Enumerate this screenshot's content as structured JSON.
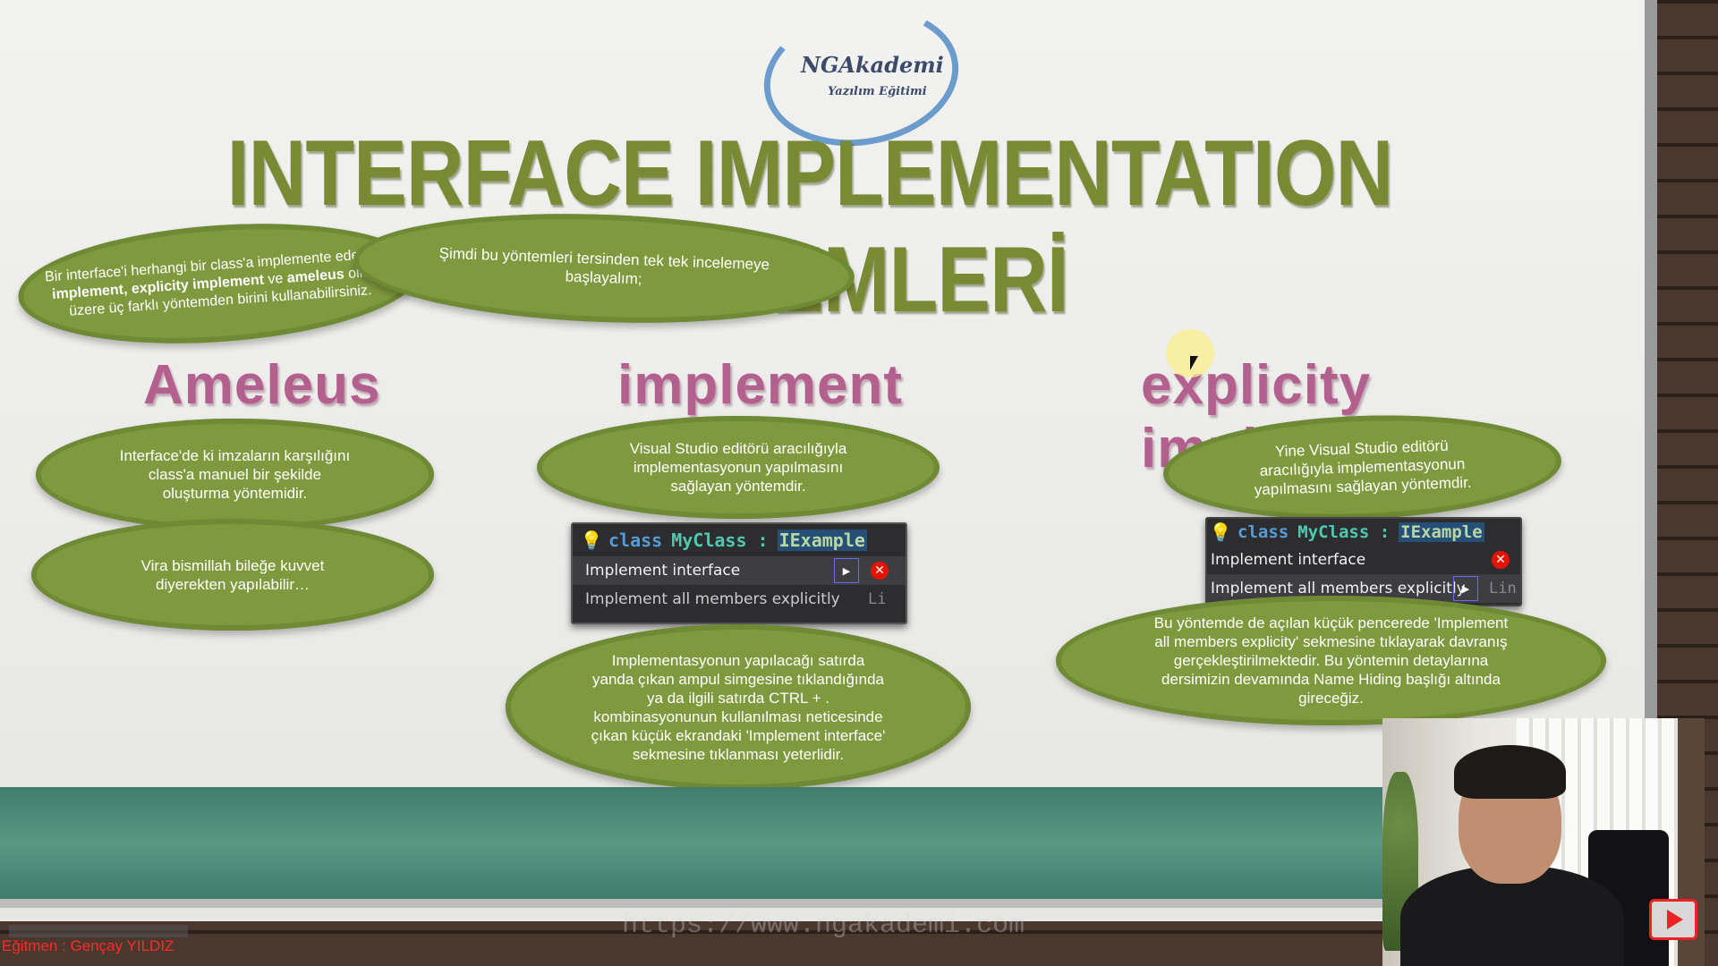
{
  "logo": {
    "title": "NGAkademi",
    "subtitle": "Yazılım Eğitimi"
  },
  "slide": {
    "title": "INTERFACE IMPLEMENTATION YÖNTEMLERİ",
    "intro_cloud": {
      "p1": "Bir interface'i herhangi bir class'a implemente ederken;",
      "b1": "implement,",
      "b2": "explicity implement",
      "p2": "ve",
      "b3": "ameleus",
      "p3": "olmak üzere üç farklı yöntemden birini kullanabilirsiniz."
    },
    "start_cloud": "Şimdi bu yöntemleri tersinden tek tek incelemeye başlayalım;",
    "columns": {
      "ameleus": {
        "heading": "Ameleus",
        "cloud1": "Interface'de ki imzaların karşılığını class'a manuel bir şekilde oluşturma yöntemidir.",
        "cloud2": "Vira bismillah bileğe kuvvet diyerekten yapılabilir…"
      },
      "implement": {
        "heading": "implement",
        "cloud1": "Visual Studio editörü aracılığıyla implementasyonun yapılmasını sağlayan yöntemdir.",
        "cloud2": "Implementasyonun yapılacağı satırda yanda çıkan ampul simgesine tıklandığında ya da ilgili satırda CTRL + . kombinasyonunun kullanılması neticesinde çıkan küçük ekrandaki 'Implement interface' sekmesine tıklanması yeterlidir.",
        "vs": {
          "kw": "class",
          "cls": "MyClass :",
          "sel": "IExample",
          "item1": "Implement interface",
          "item2": "Implement all members explicitly",
          "aside": "Li"
        }
      },
      "explicit": {
        "heading": "explicity implement",
        "cloud1": "Yine Visual Studio editörü aracılığıyla implementasyonun yapılmasını sağlayan yöntemdir.",
        "cloud2": "Bu yöntemde de açılan küçük pencerede 'Implement all members explicity' sekmesine tıklayarak davranış gerçekleştirilmektedir. Bu yöntemin detaylarına dersimizin devamında Name Hiding başlığı altında gireceğiz.",
        "vs": {
          "kw": "class",
          "cls": "MyClass :",
          "sel": "IExample",
          "item1": "Implement interface",
          "item2": "Implement all members explicitly",
          "aside": "Lin"
        }
      }
    },
    "watermark": "https://www.ngakademi.com"
  },
  "caption": "Eğitmen : Gençay YILDIZ",
  "icons": {
    "bulb": "lightbulb-icon",
    "close": "close-icon",
    "play": "play-icon",
    "arrow": "chevron-right-icon"
  },
  "colors": {
    "cloud": "#7f9a3e",
    "title": "#7a8a34",
    "heading": "#b3608f",
    "banner": "#4f8c77",
    "caption": "#ff2a2a"
  }
}
